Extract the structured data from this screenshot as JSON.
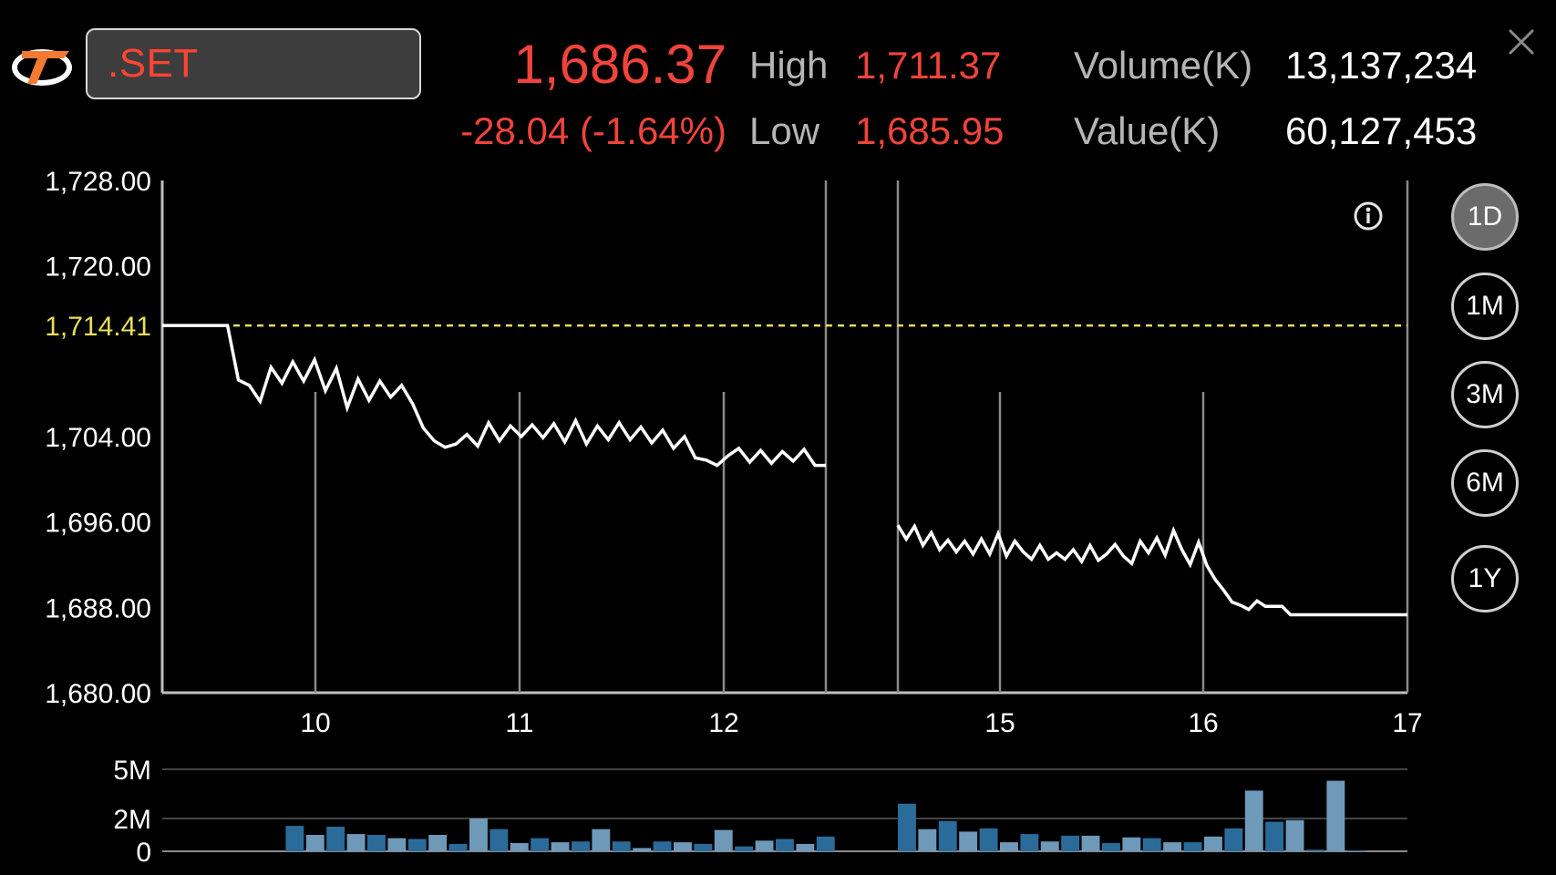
{
  "header": {
    "symbol": ".SET",
    "last_price": "1,686.37",
    "change": "-28.04 (-1.64%)",
    "high_label": "High",
    "high_value": "1,711.37",
    "low_label": "Low",
    "low_value": "1,685.95",
    "volume_label": "Volume(K)",
    "volume_value": "13,137,234",
    "value_label": "Value(K)",
    "value_value": "60,127,453"
  },
  "icons": {
    "logo": "brand-logo",
    "close": "close-icon",
    "info": "info-icon"
  },
  "periods": [
    {
      "label": "1D",
      "active": true
    },
    {
      "label": "1M",
      "active": false
    },
    {
      "label": "3M",
      "active": false
    },
    {
      "label": "6M",
      "active": false
    },
    {
      "label": "1Y",
      "active": false
    }
  ],
  "colors": {
    "down": "#f0443a",
    "prev_close": "#e8e05a",
    "line": "#ffffff",
    "volume_bar": "#2e6d9c"
  },
  "chart_data": [
    {
      "type": "line",
      "ylim": [
        1680,
        1728
      ],
      "y_ticks": [
        "1,728.00",
        "1,720.00",
        "1,704.00",
        "1,696.00",
        "1,688.00",
        "1,680.00"
      ],
      "x_ticks": [
        "10",
        "11",
        "12",
        "15",
        "16",
        "17"
      ],
      "reference_line": {
        "label": "1,714.41",
        "value": 1714.41,
        "style": "dashed",
        "color": "#e8e05a"
      },
      "sessions": [
        {
          "name": "first",
          "values": [
            1714.41,
            1714.41,
            1714.41,
            1714.41,
            1714.41,
            1714.41,
            1714.41,
            1709.3,
            1708.8,
            1707.3,
            1710.5,
            1709.0,
            1711.0,
            1709.2,
            1711.2,
            1708.3,
            1710.4,
            1706.7,
            1709.4,
            1707.4,
            1709.2,
            1707.7,
            1708.8,
            1707.1,
            1704.8,
            1703.6,
            1703.0,
            1703.3,
            1704.2,
            1703.1,
            1705.3,
            1703.6,
            1705.0,
            1704.0,
            1705.1,
            1703.9,
            1705.2,
            1703.5,
            1705.5,
            1703.3,
            1705.0,
            1703.7,
            1705.3,
            1703.7,
            1704.9,
            1703.4,
            1704.6,
            1702.9,
            1704.0,
            1702.0,
            1701.8,
            1701.3,
            1702.2,
            1702.9,
            1701.6,
            1702.7,
            1701.5,
            1702.6,
            1701.7,
            1702.8,
            1701.3,
            1701.3
          ]
        },
        {
          "name": "second",
          "values": [
            1695.7,
            1694.4,
            1695.6,
            1693.8,
            1695.0,
            1693.4,
            1694.3,
            1693.2,
            1694.2,
            1693.0,
            1694.4,
            1693.0,
            1694.9,
            1692.8,
            1694.2,
            1693.2,
            1692.5,
            1693.8,
            1692.5,
            1693.1,
            1692.5,
            1693.4,
            1692.3,
            1693.8,
            1692.4,
            1693.0,
            1693.9,
            1692.8,
            1692.1,
            1694.2,
            1693.1,
            1694.5,
            1692.9,
            1695.2,
            1693.4,
            1692.0,
            1694.1,
            1691.9,
            1690.6,
            1689.6,
            1688.5,
            1688.2,
            1687.8,
            1688.6,
            1688.1,
            1688.1,
            1688.1,
            1687.3,
            1687.3,
            1687.3,
            1687.3,
            1687.3,
            1687.3,
            1687.3,
            1687.3,
            1687.3,
            1687.3,
            1687.3,
            1687.3,
            1687.3,
            1687.3,
            1687.3
          ]
        }
      ]
    },
    {
      "type": "bar",
      "ylim": [
        0,
        5
      ],
      "y_ticks": [
        "5M",
        "2M",
        "0"
      ],
      "sessions": [
        {
          "name": "first",
          "values": [
            0,
            0,
            0,
            0,
            0,
            0,
            1.55,
            1.0,
            1.5,
            1.05,
            1.0,
            0.8,
            0.75,
            1.0,
            0.45,
            2.0,
            1.35,
            0.5,
            0.8,
            0.55,
            0.6,
            1.35,
            0.6,
            0.2,
            0.6,
            0.55,
            0.45,
            1.3,
            0.3,
            0.65,
            0.75,
            0.45,
            0.9
          ]
        },
        {
          "name": "second",
          "values": [
            2.9,
            1.35,
            1.85,
            1.2,
            1.4,
            0.55,
            1.05,
            0.6,
            0.95,
            0.95,
            0.5,
            0.85,
            0.8,
            0.55,
            0.55,
            0.9,
            1.4,
            3.7,
            1.8,
            1.9,
            0.1,
            4.3,
            0.05
          ]
        }
      ]
    }
  ]
}
